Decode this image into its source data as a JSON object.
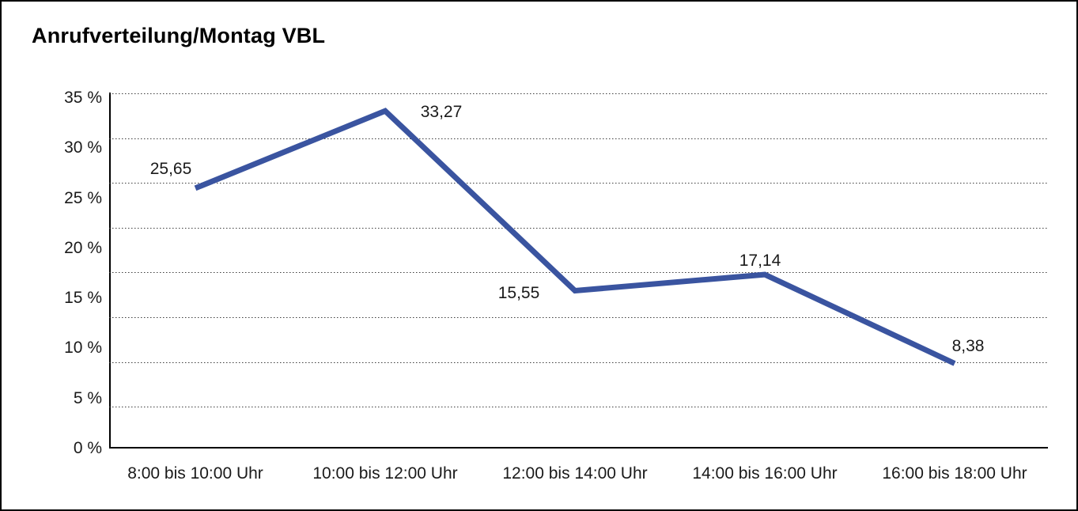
{
  "title": "Anrufverteilung/Montag VBL",
  "colors": {
    "line": "#3A54A0",
    "text": "#1A1A1A",
    "grid": "#3D3D3D",
    "axis": "#000000",
    "frame": "#000000",
    "background": "#FFFFFF"
  },
  "chart_data": {
    "type": "line",
    "title": "Anrufverteilung/Montag VBL",
    "categories": [
      "8:00 bis 10:00 Uhr",
      "10:00 bis 12:00 Uhr",
      "12:00 bis 14:00 Uhr",
      "14:00 bis 16:00 Uhr",
      "16:00 bis 18:00 Uhr"
    ],
    "values": [
      25.65,
      33.27,
      15.55,
      17.14,
      8.38
    ],
    "value_labels": [
      "25,65",
      "33,27",
      "15,55",
      "17,14",
      "8,38"
    ],
    "xlabel": "",
    "ylabel": "",
    "ylim": [
      0,
      35
    ],
    "y_ticks": [
      "35 %",
      "30 %",
      "25 %",
      "20 %",
      "15 %",
      "10 %",
      "5 %",
      "0 %"
    ],
    "grid": "horizontal-dotted",
    "legend_position": "none",
    "line_style": "solid",
    "markers": "none"
  }
}
